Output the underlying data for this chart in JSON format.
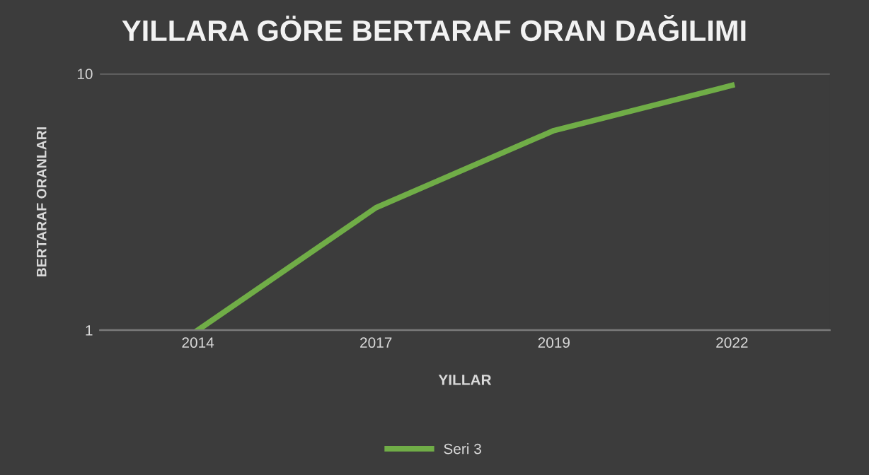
{
  "chart_data": {
    "type": "line",
    "title": "YILLARA GÖRE BERTARAF ORAN DAĞILIMI",
    "xlabel": "YILLAR",
    "ylabel": "BERTARAF ORANLARI",
    "categories": [
      "2014",
      "2017",
      "2019",
      "2022"
    ],
    "series": [
      {
        "name": "Seri 3",
        "color": "#70ad47",
        "values": [
          1,
          3,
          6,
          9
        ]
      }
    ],
    "log": "y",
    "ylim": [
      1,
      10
    ],
    "yticks": [
      1,
      10
    ],
    "grid": "y",
    "legend": "bottom",
    "marker": "none",
    "line_style": "solid"
  }
}
